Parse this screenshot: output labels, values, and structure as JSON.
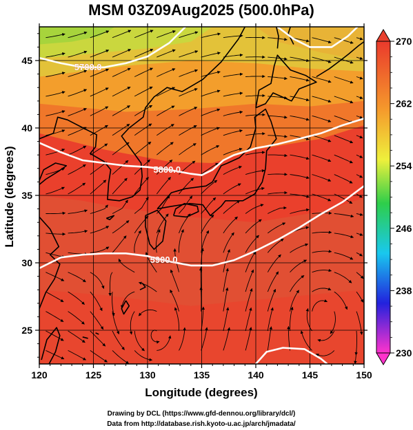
{
  "title": "MSM 03Z09Aug2025 (500.0hPa)",
  "x_axis": {
    "label": "Longitude (degrees)",
    "range": [
      120,
      150
    ],
    "ticks": [
      120,
      125,
      130,
      135,
      140,
      145,
      150
    ],
    "tick_labels": [
      "120",
      "125",
      "130",
      "135",
      "140",
      "145",
      "150"
    ]
  },
  "y_axis": {
    "label": "Latitude  (degrees)",
    "range": [
      22.5,
      47.5
    ],
    "ticks": [
      25,
      30,
      35,
      40,
      45
    ],
    "tick_labels": [
      "25",
      "30",
      "35",
      "40",
      "45"
    ]
  },
  "colorbar": {
    "min": 230,
    "max": 270,
    "labeled_ticks": [
      "270",
      "262",
      "254",
      "246",
      "238",
      "230"
    ],
    "tick_values": [
      270,
      262,
      254,
      246,
      238,
      230
    ],
    "colors": {
      "magenta": "#ff33cc",
      "blue": "#2222dd",
      "cyan": "#19c8ee",
      "green": "#2ece4a",
      "yellow": "#eef03c",
      "orange": "#f59a2c",
      "red": "#ea3a2c"
    }
  },
  "contours": [
    {
      "label": "5700.0",
      "value": 5700.0
    },
    {
      "label": "5800.0",
      "value": 5800.0
    },
    {
      "label": "5900.0",
      "value": 5900.0
    }
  ],
  "credits": {
    "line1": "Drawing by DCL (https://www.gfd-dennou.org/library/dcl/)",
    "line2": "Data from http://database.rish.kyoto-u.ac.jp/arch/jmadata/"
  },
  "chart_data": {
    "type": "heatmap",
    "title": "MSM 03Z09Aug2025 (500.0hPa)",
    "xlabel": "Longitude (degrees)",
    "ylabel": "Latitude  (degrees)",
    "xlim": [
      120,
      150
    ],
    "ylim": [
      22.5,
      47.5
    ],
    "grid": true,
    "colorbar_range": [
      230,
      270
    ],
    "temperature_field_estimate": [
      {
        "lon": 121,
        "lat": 47,
        "value": 258
      },
      {
        "lon": 125,
        "lat": 45,
        "value": 261
      },
      {
        "lon": 135,
        "lat": 45,
        "value": 263
      },
      {
        "lon": 145,
        "lat": 46,
        "value": 262
      },
      {
        "lon": 130,
        "lat": 40,
        "value": 264
      },
      {
        "lon": 140,
        "lat": 40,
        "value": 265
      },
      {
        "lon": 125,
        "lat": 36,
        "value": 267
      },
      {
        "lon": 138,
        "lat": 33,
        "value": 268
      },
      {
        "lon": 128,
        "lat": 27,
        "value": 268
      },
      {
        "lon": 145,
        "lat": 27,
        "value": 267
      }
    ],
    "height_contours": [
      {
        "label": "5700.0",
        "points": [
          [
            120,
            45.2
          ],
          [
            122,
            44.8
          ],
          [
            124,
            44.5
          ],
          [
            126,
            44.5
          ],
          [
            128,
            44.8
          ],
          [
            130,
            45.3
          ],
          [
            132,
            46.3
          ],
          [
            133.5,
            47.5
          ]
        ]
      },
      {
        "label": "5700.0",
        "points": [
          [
            142,
            47.5
          ],
          [
            143.5,
            46.6
          ],
          [
            145,
            46.0
          ],
          [
            147,
            46.0
          ],
          [
            148.5,
            46.8
          ],
          [
            149.4,
            47.5
          ]
        ]
      },
      {
        "label": "5800.0",
        "points": [
          [
            120,
            38.9
          ],
          [
            122,
            38.2
          ],
          [
            124,
            37.6
          ],
          [
            126,
            37.4
          ],
          [
            128,
            37.2
          ],
          [
            130,
            37.1
          ],
          [
            132,
            36.9
          ],
          [
            134,
            36.6
          ],
          [
            135,
            36.5
          ],
          [
            136,
            36.9
          ],
          [
            137,
            37.6
          ],
          [
            138,
            38.0
          ],
          [
            140,
            38.5
          ],
          [
            142,
            38.8
          ],
          [
            144,
            39.2
          ],
          [
            146,
            39.6
          ],
          [
            148,
            40.2
          ],
          [
            150,
            40.7
          ]
        ]
      },
      {
        "label": "5900.0",
        "points": [
          [
            120,
            29.6
          ],
          [
            121,
            30.0
          ],
          [
            122,
            30.4
          ],
          [
            124,
            30.6
          ],
          [
            126,
            30.7
          ],
          [
            128,
            30.7
          ],
          [
            130,
            30.5
          ],
          [
            132,
            30.1
          ],
          [
            134,
            29.8
          ],
          [
            136,
            29.8
          ],
          [
            138,
            30.2
          ],
          [
            140,
            30.9
          ],
          [
            142,
            31.7
          ],
          [
            144,
            32.6
          ],
          [
            146,
            33.6
          ],
          [
            148,
            34.5
          ],
          [
            150,
            35.7
          ]
        ]
      },
      {
        "label": "5900.0",
        "points": [
          [
            140,
            22.5
          ],
          [
            141,
            23.4
          ],
          [
            142.5,
            23.7
          ],
          [
            144.5,
            23.6
          ],
          [
            146,
            22.9
          ],
          [
            146.6,
            22.5
          ]
        ]
      }
    ]
  }
}
